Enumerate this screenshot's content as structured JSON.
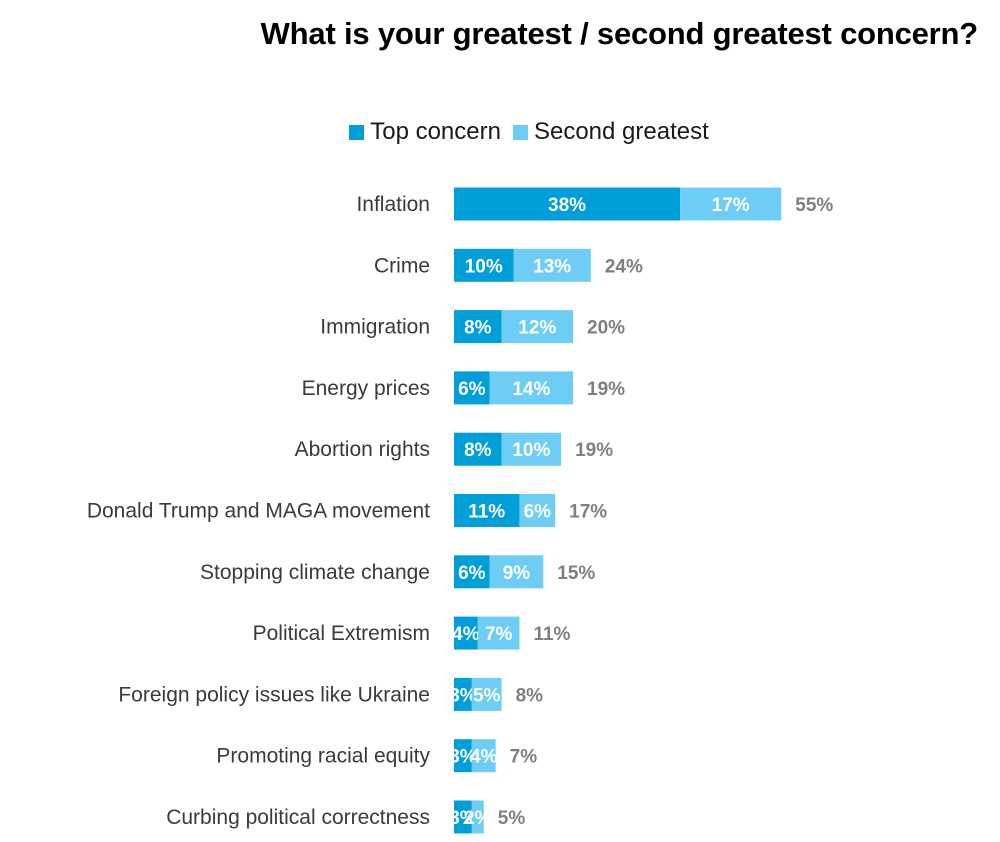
{
  "chart_data": {
    "type": "bar",
    "orientation": "horizontal",
    "stacked": true,
    "title": "What is your greatest / second greatest concern?",
    "legend_position": "top",
    "categories": [
      "Inflation",
      "Crime",
      "Immigration",
      "Energy prices",
      "Abortion rights",
      "Donald Trump and MAGA movement",
      "Stopping climate change",
      "Political Extremism",
      "Foreign policy issues like Ukraine",
      "Promoting racial equity",
      "Curbing political correctness"
    ],
    "series": [
      {
        "name": "Top concern",
        "color": "#009fd9",
        "values": [
          38,
          10,
          8,
          6,
          8,
          11,
          6,
          4,
          3,
          3,
          3
        ]
      },
      {
        "name": "Second greatest",
        "color": "#6ecdf5",
        "values": [
          17,
          13,
          12,
          14,
          10,
          6,
          9,
          7,
          5,
          4,
          2
        ]
      }
    ],
    "totals": [
      55,
      24,
      20,
      19,
      19,
      17,
      15,
      11,
      8,
      7,
      5
    ],
    "value_suffix": "%",
    "grid": false
  }
}
